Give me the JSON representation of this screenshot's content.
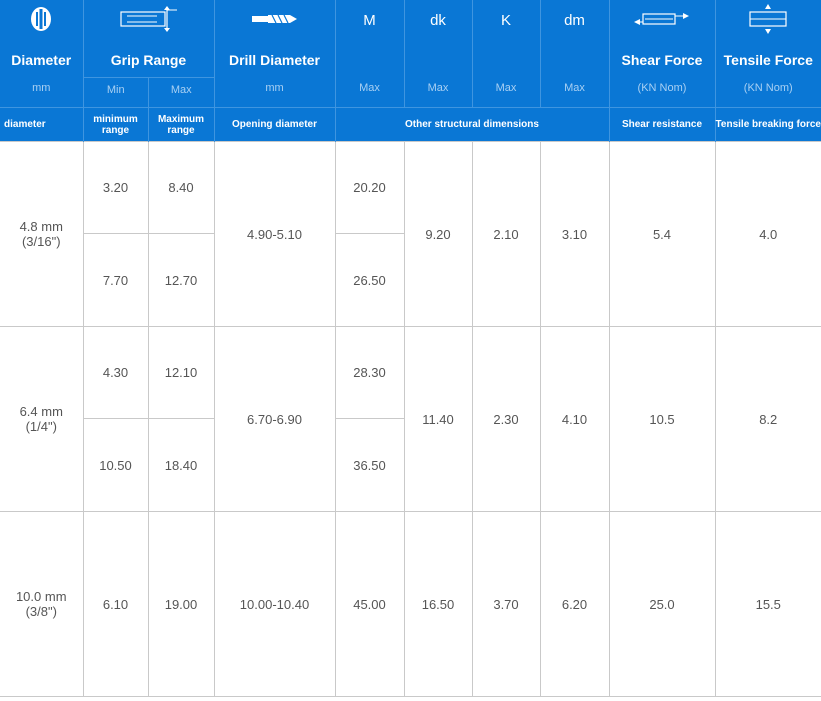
{
  "header": {
    "diameter": {
      "icon": "rivet-head-icon",
      "title": "Diameter",
      "unit": "mm"
    },
    "grip": {
      "icon": "grip-range-icon",
      "title": "Grip Range",
      "min": "Min",
      "max": "Max"
    },
    "drill": {
      "icon": "drill-bit-icon",
      "title": "Drill Diameter",
      "unit": "mm"
    },
    "m": {
      "letter": "M",
      "unit": "Max"
    },
    "dk": {
      "letter": "dk",
      "unit": "Max"
    },
    "k": {
      "letter": "K",
      "unit": "Max"
    },
    "dm": {
      "letter": "dm",
      "unit": "Max"
    },
    "shear": {
      "icon": "shear-arrows-icon",
      "title": "Shear Force",
      "unit": "(KN Nom)"
    },
    "tensile": {
      "icon": "tensile-arrows-icon",
      "title": "Tensile Force",
      "unit": "(KN Nom)"
    }
  },
  "subheader": {
    "diameter": "diameter",
    "min_range": "minimum range",
    "max_range": "Maximum range",
    "opening": "Opening diameter",
    "other": "Other structural dimensions",
    "shear": "Shear resistance",
    "tensile": "Tensile breaking force"
  },
  "rows": [
    {
      "diameter": "4.8 mm",
      "diameter_in": "(3/16\")",
      "grip": [
        {
          "min": "3.20",
          "max": "8.40"
        },
        {
          "min": "7.70",
          "max": "12.70"
        }
      ],
      "drill": "4.90-5.10",
      "m": [
        "20.20",
        "26.50"
      ],
      "dk": "9.20",
      "k": "2.10",
      "dm": "3.10",
      "shear": "5.4",
      "tensile": "4.0"
    },
    {
      "diameter": "6.4 mm",
      "diameter_in": "(1/4\")",
      "grip": [
        {
          "min": "4.30",
          "max": "12.10"
        },
        {
          "min": "10.50",
          "max": "18.40"
        }
      ],
      "drill": "6.70-6.90",
      "m": [
        "28.30",
        "36.50"
      ],
      "dk": "11.40",
      "k": "2.30",
      "dm": "4.10",
      "shear": "10.5",
      "tensile": "8.2"
    },
    {
      "diameter": "10.0 mm",
      "diameter_in": "(3/8\")",
      "grip": [
        {
          "min": "6.10",
          "max": "19.00"
        }
      ],
      "drill": "10.00-10.40",
      "m": [
        "45.00"
      ],
      "dk": "16.50",
      "k": "3.70",
      "dm": "6.20",
      "shear": "25.0",
      "tensile": "15.5"
    }
  ]
}
